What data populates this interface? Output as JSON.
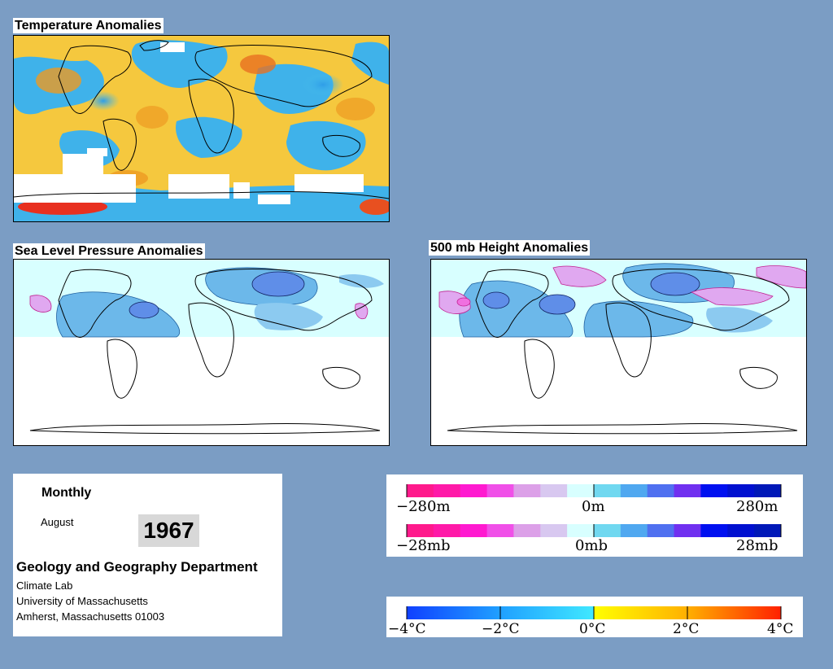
{
  "panels": {
    "temperature": {
      "title": "Temperature Anomalies"
    },
    "slp": {
      "title": "Sea Level Pressure Anomalies"
    },
    "height500": {
      "title": "500 mb Height Anomalies"
    }
  },
  "info": {
    "period": "Monthly",
    "month": "August",
    "year": "1967",
    "department": "Geology and Geography Department",
    "lab": "Climate Lab",
    "university": "University of Massachusetts",
    "address": "Amherst, Massachusetts 01003"
  },
  "legends": {
    "height": {
      "labels": [
        "−280m",
        "0m",
        "280m"
      ],
      "colors": [
        "#ff1a8c",
        "#ff1aa8",
        "#ff1ad0",
        "#f050e8",
        "#dca0e8",
        "#d8c8f0",
        "#d8ffff",
        "#70d8f0",
        "#50a8f0",
        "#5070f0",
        "#7030f0",
        "#0010f0",
        "#0010d0",
        "#0018b8"
      ]
    },
    "pressure": {
      "labels": [
        "−28mb",
        "0mb",
        "28mb"
      ],
      "colors": [
        "#ff1a8c",
        "#ff1aa8",
        "#ff1ad0",
        "#f050e8",
        "#dca0e8",
        "#d8c8f0",
        "#d8ffff",
        "#70d8f0",
        "#50a8f0",
        "#5070f0",
        "#7030f0",
        "#0010f0",
        "#0010d0",
        "#0018b8"
      ]
    },
    "temperature": {
      "labels": [
        "−4°C",
        "−2°C",
        "0°C",
        "2°C",
        "4°C"
      ],
      "colors": [
        "#1040ff",
        "#20a0ff",
        "#40e8ff",
        "#ffff00",
        "#ffb000",
        "#ff3000"
      ]
    }
  },
  "colors": {
    "background": "#7b9dc4",
    "cold": "#35b0e8",
    "warm": "#f5c03c",
    "hot": "#e83020",
    "light_cyan": "#d8ffff",
    "blue_anomaly": "#5f9fe8",
    "pink_anomaly": "#e0a8f0"
  }
}
